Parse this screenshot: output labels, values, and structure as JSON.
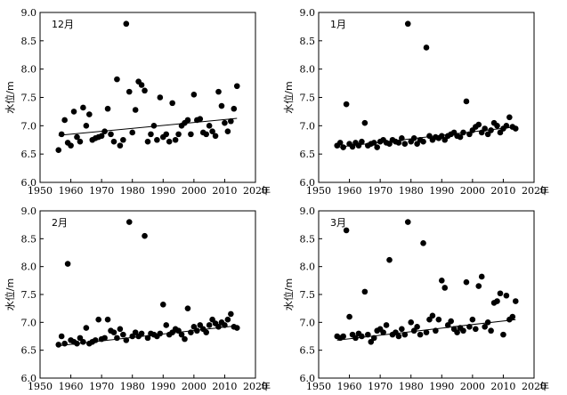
{
  "chart_data": [
    {
      "type": "scatter",
      "title": "12月",
      "xlabel": "年",
      "ylabel": "水位/m",
      "xlim": [
        1950,
        2020
      ],
      "ylim": [
        6.0,
        9.0
      ],
      "xticks": [
        1950,
        1960,
        1970,
        1980,
        1990,
        2000,
        2010,
        2020
      ],
      "yticks": [
        "6.0",
        "6.5",
        "7.0",
        "7.5",
        "8.0",
        "8.5",
        "9.0"
      ],
      "grid": false,
      "trendline": {
        "x": [
          1956,
          2014
        ],
        "y": [
          6.83,
          7.13
        ]
      },
      "series": [
        {
          "x": [
            1956,
            1957,
            1958,
            1959,
            1960,
            1961,
            1962,
            1963,
            1964,
            1965,
            1966,
            1967,
            1968,
            1969,
            1970,
            1971,
            1972,
            1973,
            1974,
            1975,
            1976,
            1977,
            1978,
            1979,
            1980,
            1981,
            1982,
            1983,
            1984,
            1985,
            1986,
            1987,
            1988,
            1989,
            1990,
            1991,
            1992,
            1993,
            1994,
            1995,
            1996,
            1997,
            1998,
            1999,
            2000,
            2001,
            2002,
            2003,
            2004,
            2005,
            2006,
            2007,
            2008,
            2009,
            2010,
            2011,
            2012,
            2013,
            2014
          ],
          "y": [
            6.57,
            6.85,
            7.1,
            6.7,
            6.65,
            7.25,
            6.8,
            6.72,
            7.32,
            7.0,
            7.2,
            6.75,
            6.78,
            6.8,
            6.82,
            6.9,
            7.3,
            6.85,
            6.72,
            7.82,
            6.65,
            6.75,
            8.8,
            7.6,
            6.88,
            7.28,
            7.78,
            7.72,
            7.62,
            6.72,
            6.85,
            7.0,
            6.75,
            7.5,
            6.8,
            6.85,
            6.72,
            7.4,
            6.75,
            6.85,
            7.0,
            7.05,
            7.1,
            6.85,
            7.55,
            7.1,
            7.12,
            6.88,
            6.85,
            7.0,
            6.9,
            6.82,
            7.6,
            7.35,
            7.05,
            6.9,
            7.08,
            7.3,
            7.7
          ]
        }
      ]
    },
    {
      "type": "scatter",
      "title": "1月",
      "xlabel": "年",
      "ylabel": "水位/m",
      "xlim": [
        1950,
        2020
      ],
      "ylim": [
        6.0,
        9.0
      ],
      "xticks": [
        1950,
        1960,
        1970,
        1980,
        1990,
        2000,
        2010,
        2020
      ],
      "yticks": [
        "6.0",
        "6.5",
        "7.0",
        "7.5",
        "8.0",
        "8.5",
        "9.0"
      ],
      "grid": false,
      "trendline": {
        "x": [
          1956,
          2014
        ],
        "y": [
          6.62,
          6.98
        ]
      },
      "series": [
        {
          "x": [
            1956,
            1957,
            1958,
            1959,
            1960,
            1961,
            1962,
            1963,
            1964,
            1965,
            1966,
            1967,
            1968,
            1969,
            1970,
            1971,
            1972,
            1973,
            1974,
            1975,
            1976,
            1977,
            1978,
            1979,
            1980,
            1981,
            1982,
            1983,
            1984,
            1985,
            1986,
            1987,
            1988,
            1989,
            1990,
            1991,
            1992,
            1993,
            1994,
            1995,
            1996,
            1997,
            1998,
            1999,
            2000,
            2001,
            2002,
            2003,
            2004,
            2005,
            2006,
            2007,
            2008,
            2009,
            2010,
            2011,
            2012,
            2013,
            2014
          ],
          "y": [
            6.65,
            6.7,
            6.62,
            7.38,
            6.68,
            6.63,
            6.7,
            6.65,
            6.72,
            7.05,
            6.65,
            6.68,
            6.7,
            6.62,
            6.72,
            6.75,
            6.7,
            6.68,
            6.75,
            6.72,
            6.7,
            6.78,
            6.68,
            8.8,
            6.72,
            6.78,
            6.68,
            6.75,
            6.72,
            8.38,
            6.82,
            6.75,
            6.8,
            6.78,
            6.82,
            6.75,
            6.82,
            6.85,
            6.88,
            6.82,
            6.8,
            6.88,
            7.43,
            6.85,
            6.92,
            6.98,
            7.02,
            6.88,
            6.95,
            6.85,
            6.92,
            7.05,
            7.0,
            6.88,
            6.95,
            7.0,
            7.15,
            6.98,
            6.95
          ]
        }
      ]
    },
    {
      "type": "scatter",
      "title": "2月",
      "xlabel": "年",
      "ylabel": "水位/m",
      "xlim": [
        1950,
        2020
      ],
      "ylim": [
        6.0,
        9.0
      ],
      "xticks": [
        1950,
        1960,
        1970,
        1980,
        1990,
        2000,
        2010,
        2020
      ],
      "yticks": [
        "6.0",
        "6.5",
        "7.0",
        "7.5",
        "8.0",
        "8.5",
        "9.0"
      ],
      "grid": false,
      "trendline": {
        "x": [
          1956,
          2014
        ],
        "y": [
          6.58,
          6.94
        ]
      },
      "series": [
        {
          "x": [
            1956,
            1957,
            1958,
            1959,
            1960,
            1961,
            1962,
            1963,
            1964,
            1965,
            1966,
            1967,
            1968,
            1969,
            1970,
            1971,
            1972,
            1973,
            1974,
            1975,
            1976,
            1977,
            1978,
            1979,
            1980,
            1981,
            1982,
            1983,
            1984,
            1985,
            1986,
            1987,
            1988,
            1989,
            1990,
            1991,
            1992,
            1993,
            1994,
            1995,
            1996,
            1997,
            1998,
            1999,
            2000,
            2001,
            2002,
            2003,
            2004,
            2005,
            2006,
            2007,
            2008,
            2009,
            2010,
            2011,
            2012,
            2013,
            2014
          ],
          "y": [
            6.6,
            6.75,
            6.62,
            8.05,
            6.68,
            6.65,
            6.62,
            6.72,
            6.65,
            6.9,
            6.62,
            6.65,
            6.68,
            7.05,
            6.7,
            6.72,
            7.05,
            6.85,
            6.82,
            6.72,
            6.88,
            6.78,
            6.68,
            8.8,
            6.75,
            6.82,
            6.75,
            6.8,
            8.55,
            6.72,
            6.8,
            6.78,
            6.75,
            6.8,
            7.32,
            6.95,
            6.78,
            6.82,
            6.88,
            6.85,
            6.78,
            6.7,
            7.25,
            6.82,
            6.92,
            6.85,
            6.95,
            6.88,
            6.82,
            6.95,
            7.05,
            6.98,
            6.92,
            7.0,
            6.95,
            7.05,
            7.15,
            6.92,
            6.9
          ]
        }
      ]
    },
    {
      "type": "scatter",
      "title": "3月",
      "xlabel": "年",
      "ylabel": "水位/m",
      "xlim": [
        1950,
        2020
      ],
      "ylim": [
        6.0,
        9.0
      ],
      "xticks": [
        1950,
        1960,
        1970,
        1980,
        1990,
        2000,
        2010,
        2020
      ],
      "yticks": [
        "6.0",
        "6.5",
        "7.0",
        "7.5",
        "8.0",
        "8.5",
        "9.0"
      ],
      "grid": false,
      "trendline": {
        "x": [
          1956,
          2014
        ],
        "y": [
          6.68,
          7.05
        ]
      },
      "series": [
        {
          "x": [
            1956,
            1957,
            1958,
            1959,
            1960,
            1961,
            1962,
            1963,
            1964,
            1965,
            1966,
            1967,
            1968,
            1969,
            1970,
            1971,
            1972,
            1973,
            1974,
            1975,
            1976,
            1977,
            1978,
            1979,
            1980,
            1981,
            1982,
            1983,
            1984,
            1985,
            1986,
            1987,
            1988,
            1989,
            1990,
            1991,
            1992,
            1993,
            1994,
            1995,
            1996,
            1997,
            1998,
            1999,
            2000,
            2001,
            2002,
            2003,
            2004,
            2005,
            2006,
            2007,
            2008,
            2009,
            2010,
            2011,
            2012,
            2013,
            2014
          ],
          "y": [
            6.75,
            6.72,
            6.75,
            8.65,
            7.1,
            6.78,
            6.72,
            6.8,
            6.75,
            7.55,
            6.78,
            6.65,
            6.72,
            6.85,
            6.88,
            6.82,
            6.95,
            8.12,
            6.78,
            6.82,
            6.75,
            6.88,
            6.78,
            8.8,
            7.0,
            6.85,
            6.92,
            6.78,
            8.42,
            6.82,
            7.05,
            7.12,
            6.85,
            7.05,
            7.75,
            7.62,
            6.95,
            7.02,
            6.88,
            6.82,
            6.9,
            6.85,
            7.72,
            6.92,
            7.05,
            6.88,
            7.65,
            7.82,
            6.92,
            7.0,
            6.85,
            7.35,
            7.38,
            7.52,
            6.78,
            7.48,
            7.05,
            7.1,
            7.38
          ]
        }
      ]
    }
  ]
}
